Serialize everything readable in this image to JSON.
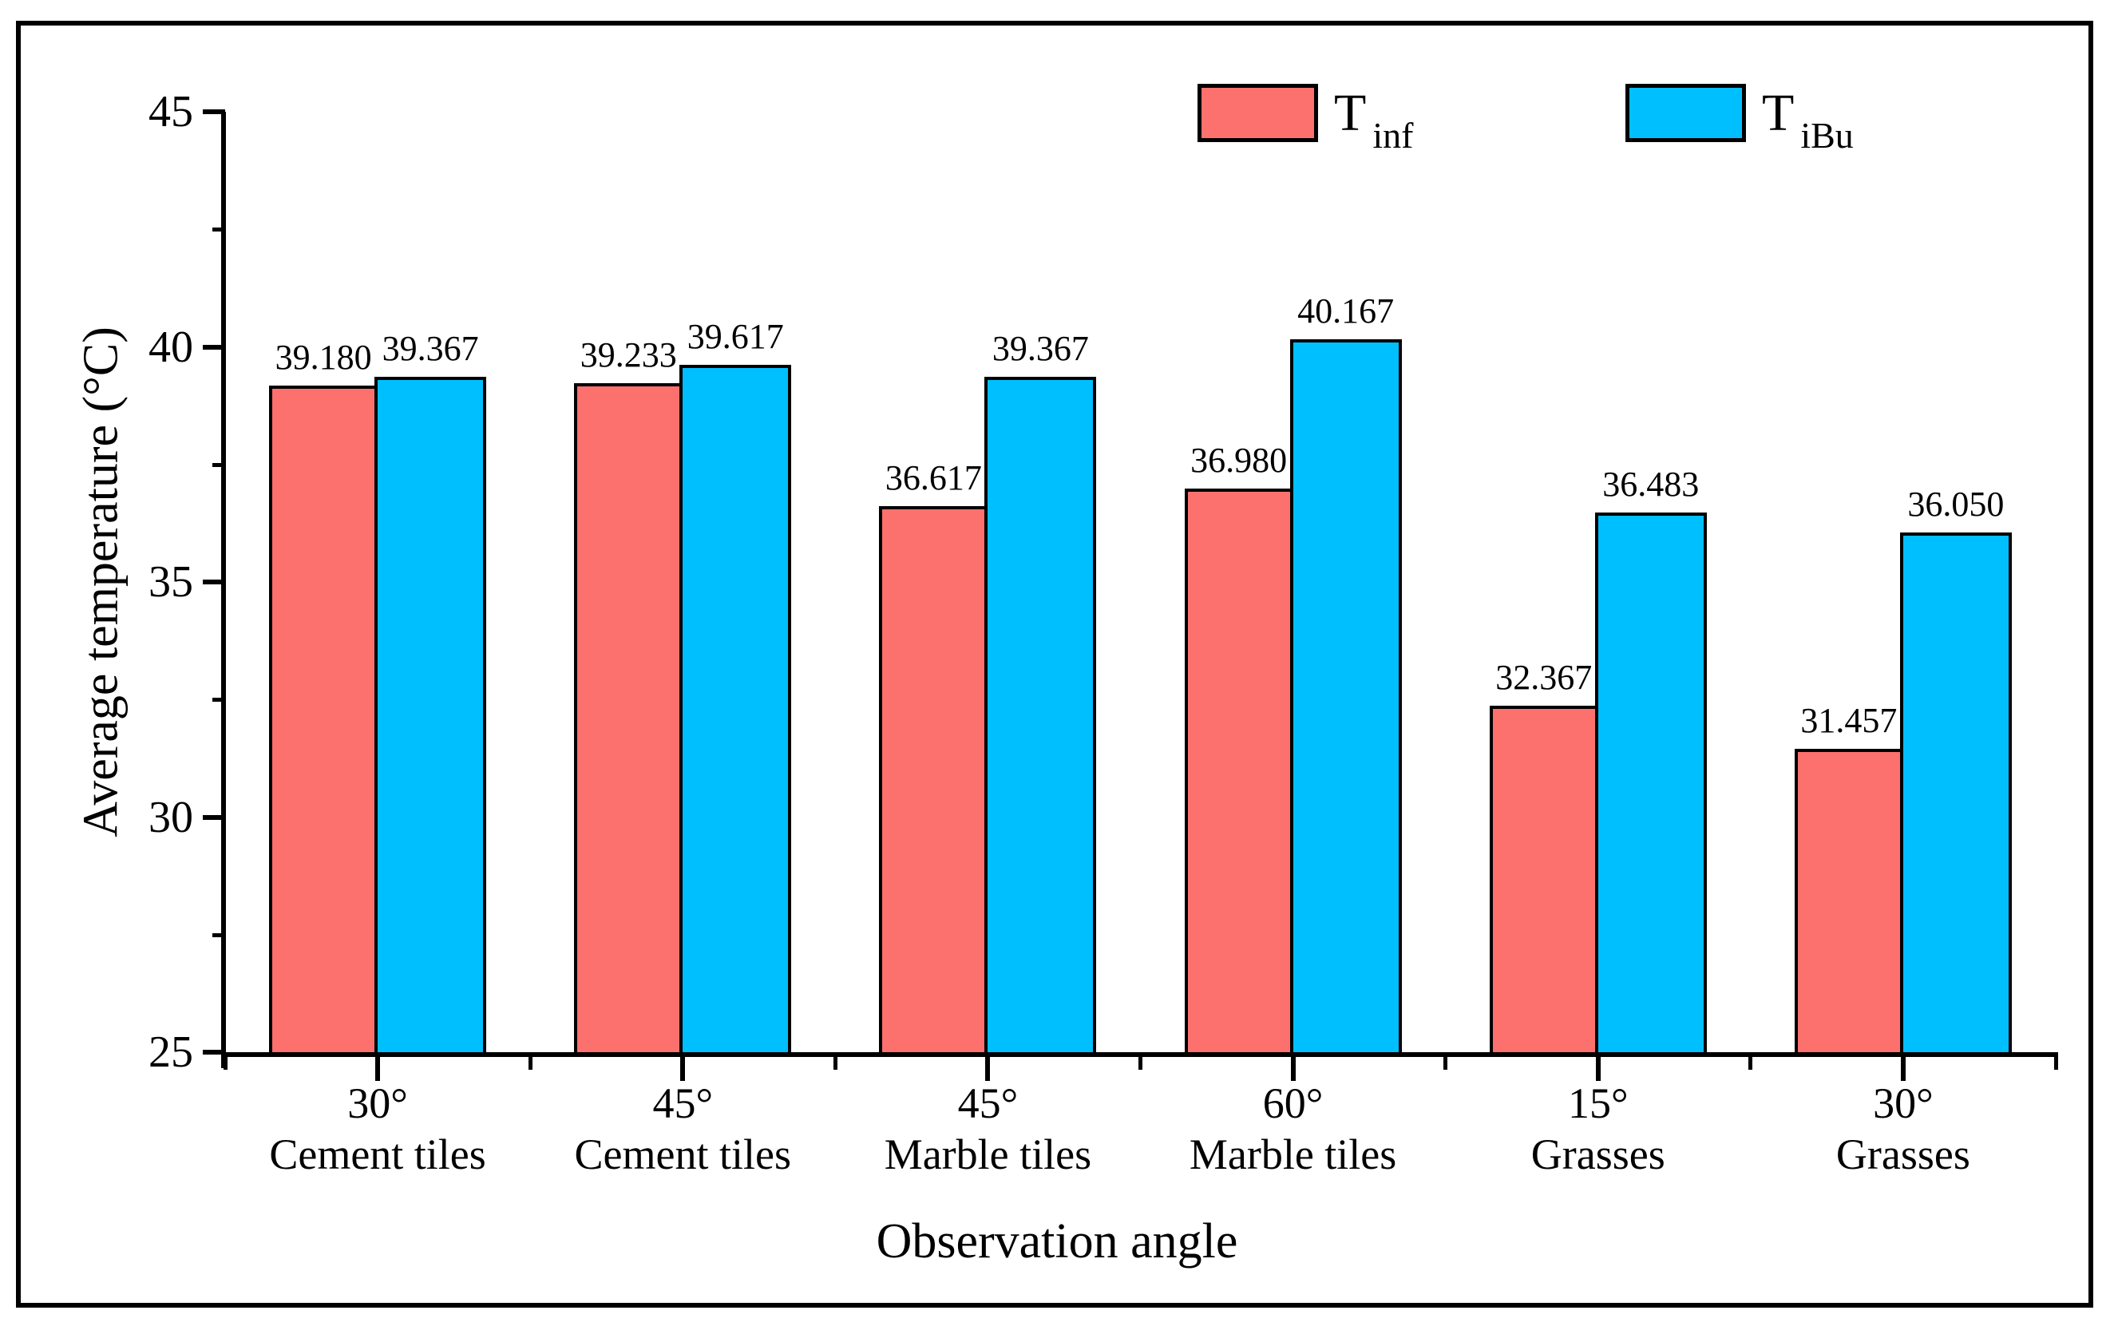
{
  "chart_data": {
    "type": "bar",
    "title": "",
    "xlabel": "Observation angle",
    "ylabel": "Average temperature (°C)",
    "ylim": [
      25,
      45
    ],
    "yticks_major": [
      25,
      30,
      35,
      40,
      45
    ],
    "yticks_minor": [
      27.5,
      32.5,
      37.5,
      42.5
    ],
    "grid": false,
    "legend_position": "top-right-inside",
    "categories": [
      {
        "angle": "30°",
        "surface": "Cement tiles"
      },
      {
        "angle": "45°",
        "surface": "Cement tiles"
      },
      {
        "angle": "45°",
        "surface": "Marble tiles"
      },
      {
        "angle": "60°",
        "surface": "Marble tiles"
      },
      {
        "angle": "15°",
        "surface": "Grasses"
      },
      {
        "angle": "30°",
        "surface": "Grasses"
      }
    ],
    "series": [
      {
        "name": "T_inf",
        "label_main": "T",
        "label_sub": "inf",
        "color": "#FC716E",
        "values": [
          39.18,
          39.233,
          36.617,
          36.98,
          32.367,
          31.457
        ],
        "value_labels": [
          "39.180",
          "39.233",
          "36.617",
          "36.980",
          "32.367",
          "31.457"
        ]
      },
      {
        "name": "T_iBu",
        "label_main": "T",
        "label_sub": "iBu",
        "color": "#00BFFF",
        "values": [
          39.367,
          39.617,
          39.367,
          40.167,
          36.483,
          36.05
        ],
        "value_labels": [
          "39.367",
          "39.617",
          "39.367",
          "40.167",
          "36.483",
          "36.050"
        ]
      }
    ],
    "colors": {
      "bar_outline": "#000000",
      "axis": "#000000",
      "background": "#FFFFFF"
    }
  }
}
